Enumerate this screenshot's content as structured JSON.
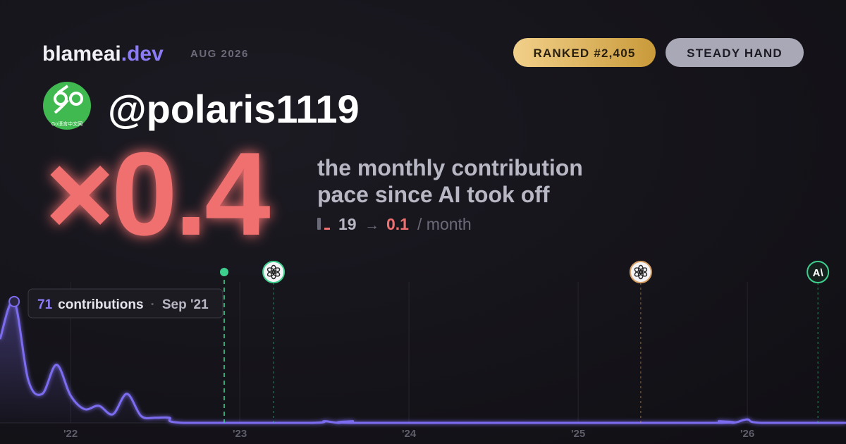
{
  "header": {
    "brand": "blameai",
    "brand_tld": ".dev",
    "date": "AUG 2026",
    "badges": [
      "RANKED #2,405",
      "STEADY HAND"
    ]
  },
  "profile": {
    "handle": "@polaris1119",
    "avatar_caption": "Go语言中文网"
  },
  "stat": {
    "multiplier": "×0.4",
    "description": [
      "the monthly contribution",
      "pace since AI took off"
    ],
    "before": "19",
    "arrow": "→",
    "after": "0.1",
    "unit": "/ month"
  },
  "chart_data": {
    "type": "line",
    "x": [
      2021.583,
      2021.667,
      2021.75,
      2021.833,
      2021.917,
      2022.0,
      2022.083,
      2022.167,
      2022.25,
      2022.333,
      2022.417,
      2022.5,
      2022.583,
      2022.667,
      2023.417,
      2023.5,
      2023.583,
      2023.667,
      2023.75,
      2025.75,
      2025.833,
      2025.917,
      2026.0,
      2026.083,
      2026.583
    ],
    "series": [
      {
        "color": "#7c6cf0",
        "values": [
          49,
          71,
          25,
          17,
          34,
          16,
          8,
          10,
          5,
          17,
          4,
          3,
          3,
          0,
          0,
          1,
          0,
          1,
          0,
          0,
          1,
          0,
          2,
          0,
          0
        ]
      }
    ],
    "xlim": [
      2021.583,
      2026.583
    ],
    "ylim": [
      0,
      80
    ],
    "xticks": [
      {
        "value": 2022,
        "label": "'22"
      },
      {
        "value": 2023,
        "label": "'23"
      },
      {
        "value": 2024,
        "label": "'24"
      },
      {
        "value": 2025,
        "label": "'25"
      },
      {
        "value": 2026,
        "label": "'26"
      }
    ],
    "grid": true,
    "tooltip": {
      "label": "contributions",
      "separator": "·",
      "date": "Sep '21"
    },
    "markers": [
      {
        "x": 2022.908,
        "shape": "dot",
        "color": "#3ecf8e"
      },
      {
        "x": 2023.2,
        "shape": "ring",
        "color": "#3ecf8e"
      },
      {
        "x": 2025.37,
        "shape": "ring",
        "color": "#d9a066"
      },
      {
        "x": 2026.417,
        "shape": "ring",
        "color": "#3ecf8e",
        "label": "A\\"
      }
    ]
  }
}
